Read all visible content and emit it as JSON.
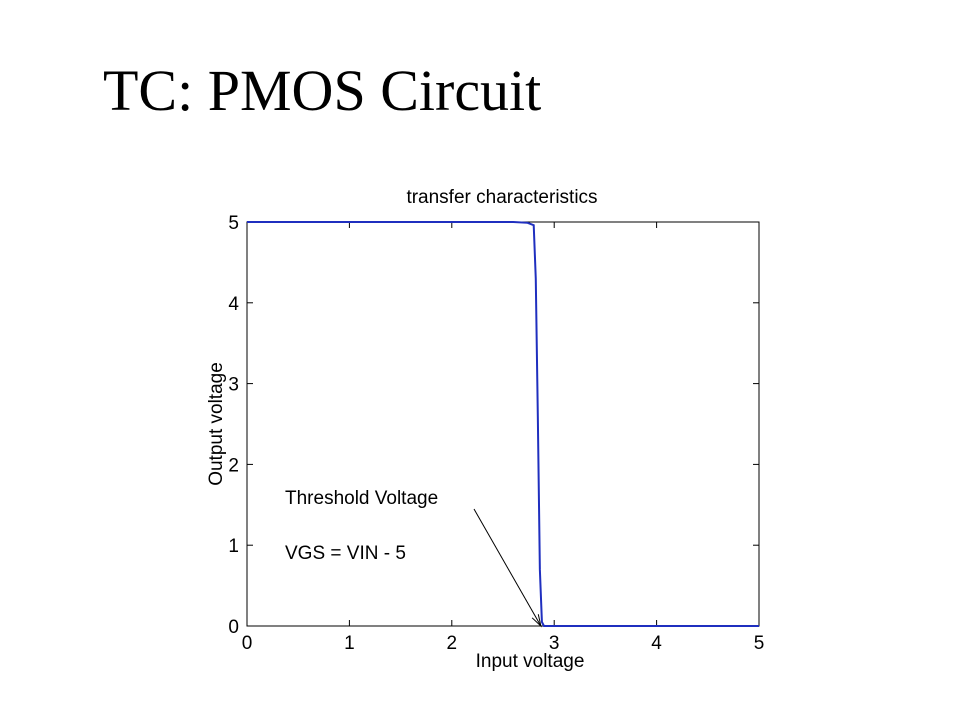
{
  "slide": {
    "title": "TC: PMOS Circuit"
  },
  "chart_data": {
    "type": "line",
    "title": "transfer characteristics",
    "xlabel": "Input voltage",
    "ylabel": "Output voltage",
    "xlim": [
      0,
      5
    ],
    "ylim": [
      0,
      5
    ],
    "xticks": [
      0,
      1,
      2,
      3,
      4,
      5
    ],
    "yticks": [
      0,
      1,
      2,
      3,
      4,
      5
    ],
    "grid": false,
    "series": [
      {
        "color": "#1f2fbf",
        "x": [
          0,
          2.6,
          2.74,
          2.8,
          2.82,
          2.84,
          2.86,
          2.88,
          2.9,
          3.0,
          4.0,
          5.0
        ],
        "y": [
          5,
          5,
          4.99,
          4.96,
          4.3,
          2.6,
          0.7,
          0.05,
          0,
          0,
          0,
          0
        ]
      }
    ],
    "annotation": {
      "lines": [
        "Threshold Voltage",
        "VGS = VIN - 5"
      ],
      "arrow_target": [
        2.87,
        0
      ]
    }
  }
}
